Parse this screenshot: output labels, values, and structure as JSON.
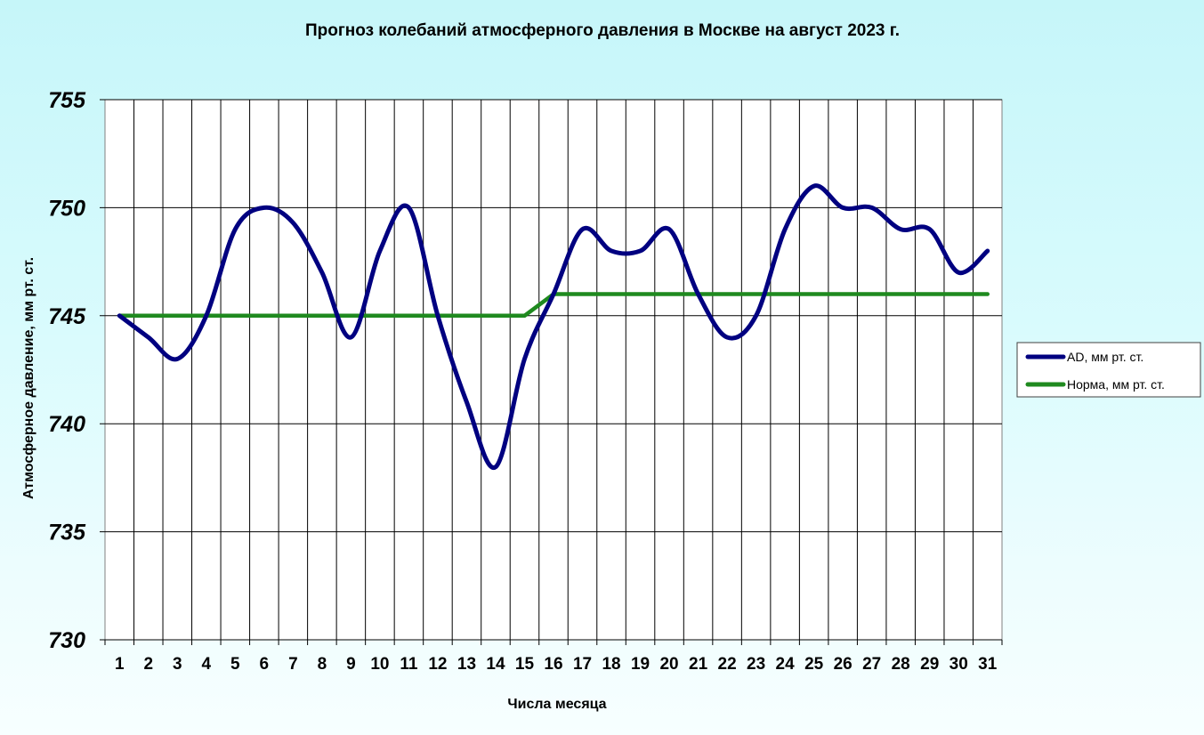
{
  "chart_data": {
    "type": "line",
    "title": "Прогноз колебаний атмосферного  давления в Москве на август 2023 г.",
    "xlabel": "Числа месяца",
    "ylabel": "Атмосферное давление, мм рт. ст.",
    "categories": [
      "1",
      "2",
      "3",
      "4",
      "5",
      "6",
      "7",
      "8",
      "9",
      "10",
      "11",
      "12",
      "13",
      "14",
      "15",
      "16",
      "17",
      "18",
      "19",
      "20",
      "21",
      "22",
      "23",
      "24",
      "25",
      "26",
      "27",
      "28",
      "29",
      "30",
      "31"
    ],
    "ylim": [
      730,
      755
    ],
    "yticks": [
      "730",
      "735",
      "740",
      "745",
      "750",
      "755"
    ],
    "grid": true,
    "legend_position": "right",
    "series": [
      {
        "name": "AD, мм рт. ст.",
        "color": "#000080",
        "smooth": true,
        "values": [
          745,
          744,
          743,
          745,
          749,
          750,
          749.3,
          747,
          744,
          748,
          750,
          745,
          741,
          738,
          743,
          746,
          749,
          748,
          748,
          749,
          746,
          744,
          745,
          749,
          751,
          750,
          750,
          749,
          749,
          747,
          748
        ]
      },
      {
        "name": "Норма, мм рт. ст.",
        "color": "#1f8a1f",
        "smooth": false,
        "values": [
          745,
          745,
          745,
          745,
          745,
          745,
          745,
          745,
          745,
          745,
          745,
          745,
          745,
          745,
          745,
          746,
          746,
          746,
          746,
          746,
          746,
          746,
          746,
          746,
          746,
          746,
          746,
          746,
          746,
          746,
          746
        ]
      }
    ]
  }
}
